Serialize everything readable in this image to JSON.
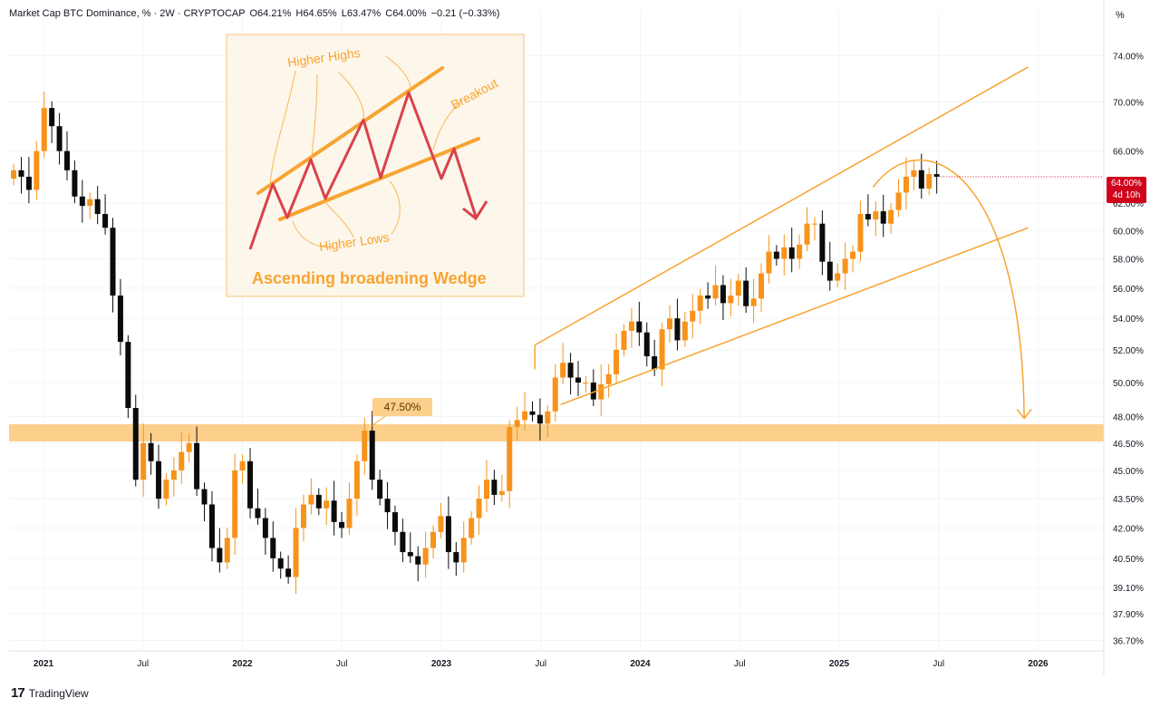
{
  "header": {
    "symbol": "Market Cap BTC Dominance, % · 2W · CRYPTOCAP",
    "open": "O64.21%",
    "high": "H64.65%",
    "low": "L63.47%",
    "close": "C64.00%",
    "change": "−0.21 (−0.33%)"
  },
  "unit_label": "%",
  "last_price": {
    "value": "64.00%",
    "countdown": "4d 10h"
  },
  "footer": {
    "brand": "TradingView"
  },
  "colors": {
    "up": "#f7931a",
    "down": "#0b0b0b",
    "accent": "#f7a431",
    "band": "#fccf8b",
    "badge": "#d0021b",
    "inset_red": "#d9424a"
  },
  "chart_data": {
    "type": "candlestick",
    "title": "Market Cap BTC Dominance, % · 2W · CRYPTOCAP",
    "y_scale": "log",
    "ylim": [
      36.4,
      78.0
    ],
    "y_ticks": [
      "74.00%",
      "70.00%",
      "66.00%",
      "62.00%",
      "60.00%",
      "58.00%",
      "56.00%",
      "54.00%",
      "52.00%",
      "50.00%",
      "48.00%",
      "46.50%",
      "45.00%",
      "43.50%",
      "42.00%",
      "40.50%",
      "39.10%",
      "37.90%",
      "36.70%"
    ],
    "y_tick_values": [
      74.0,
      70.0,
      66.0,
      62.0,
      60.0,
      58.0,
      56.0,
      54.0,
      52.0,
      50.0,
      48.0,
      46.5,
      45.0,
      43.5,
      42.0,
      40.5,
      39.1,
      37.9,
      36.7
    ],
    "x_ticks": [
      {
        "label": "2021",
        "t": 2021.0,
        "bold": true
      },
      {
        "label": "Jul",
        "t": 2021.5,
        "bold": false
      },
      {
        "label": "2022",
        "t": 2022.0,
        "bold": true
      },
      {
        "label": "Jul",
        "t": 2022.5,
        "bold": false
      },
      {
        "label": "2023",
        "t": 2023.0,
        "bold": true
      },
      {
        "label": "Jul",
        "t": 2023.5,
        "bold": false
      },
      {
        "label": "2024",
        "t": 2024.0,
        "bold": true
      },
      {
        "label": "Jul",
        "t": 2024.5,
        "bold": false
      },
      {
        "label": "2025",
        "t": 2025.0,
        "bold": true
      },
      {
        "label": "Jul",
        "t": 2025.5,
        "bold": false
      },
      {
        "label": "2026",
        "t": 2026.0,
        "bold": true
      }
    ],
    "start_time": 2020.85,
    "bar_interval_years": 0.03835,
    "closes": [
      64.5,
      64.0,
      63.0,
      66.0,
      69.5,
      68.0,
      66.0,
      64.5,
      62.5,
      61.8,
      62.3,
      61.2,
      60.2,
      55.5,
      52.5,
      48.5,
      44.5,
      46.5,
      45.5,
      43.5,
      44.5,
      45.0,
      46.0,
      46.5,
      44.0,
      43.2,
      41.0,
      40.3,
      41.5,
      45.0,
      45.5,
      43.0,
      42.5,
      41.5,
      40.5,
      40.0,
      39.6,
      42.0,
      43.2,
      43.7,
      43.0,
      43.4,
      42.3,
      42.0,
      43.5,
      45.5,
      47.2,
      44.5,
      43.5,
      42.8,
      41.8,
      40.8,
      40.6,
      40.2,
      41.0,
      41.8,
      42.6,
      40.8,
      40.3,
      41.5,
      42.5,
      43.5,
      44.5,
      43.7,
      43.9,
      47.4,
      47.8,
      48.3,
      48.1,
      47.6,
      48.3,
      50.3,
      51.2,
      50.3,
      50.0,
      50.0,
      49.0,
      49.9,
      50.5,
      52.0,
      53.2,
      53.8,
      53.1,
      51.6,
      50.8,
      53.3,
      54.0,
      52.6,
      53.8,
      54.5,
      55.5,
      55.3,
      56.2,
      55.0,
      55.5,
      56.5,
      54.8,
      55.3,
      57.0,
      58.5,
      58.0,
      58.8,
      58.0,
      59.0,
      60.5,
      60.5,
      57.8,
      56.5,
      57.0,
      58.0,
      58.5,
      61.2,
      60.8,
      61.4,
      60.5,
      61.5,
      62.8,
      64.0,
      64.5,
      63.1,
      64.2,
      64.0
    ],
    "level": {
      "value": 47.5,
      "label": "47.50%",
      "band": [
        46.9,
        48.1
      ]
    },
    "channel": {
      "upper": {
        "from": [
          2023.47,
          52.3
        ],
        "to": [
          2025.95,
          73.0
        ]
      },
      "lower": {
        "from": [
          2023.6,
          48.7
        ],
        "to": [
          2025.95,
          60.2
        ]
      }
    },
    "projection": {
      "description": "curved arrow rolling over from top back toward the 47.50% level"
    },
    "inset": {
      "labels": [
        "Higher Highs",
        "Breakout",
        "Higher Lows",
        "Ascending broadening Wedge"
      ]
    }
  }
}
